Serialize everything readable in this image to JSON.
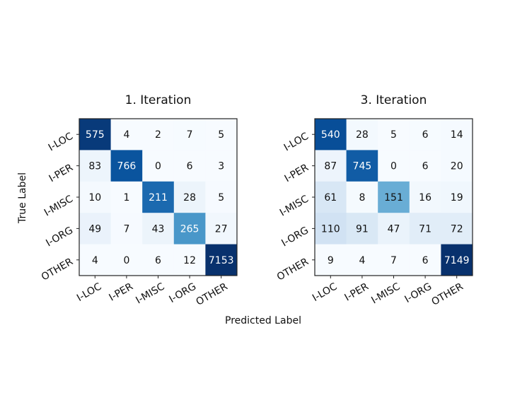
{
  "figure": {
    "xlabel": "Predicted Label",
    "ylabel": "True Label"
  },
  "chart_data": [
    {
      "type": "heatmap",
      "title": "1. Iteration",
      "x_categories": [
        "I-LOC",
        "I-PER",
        "I-MISC",
        "I-ORG",
        "OTHER"
      ],
      "y_categories": [
        "I-LOC",
        "I-PER",
        "I-MISC",
        "I-ORG",
        "OTHER"
      ],
      "xlabel": "Predicted Label",
      "ylabel": "True Label",
      "colormap": "Blues",
      "values": [
        [
          575,
          4,
          2,
          7,
          5
        ],
        [
          83,
          766,
          0,
          6,
          3
        ],
        [
          10,
          1,
          211,
          28,
          5
        ],
        [
          49,
          7,
          43,
          265,
          27
        ],
        [
          4,
          0,
          6,
          12,
          7153
        ]
      ]
    },
    {
      "type": "heatmap",
      "title": "3. Iteration",
      "x_categories": [
        "I-LOC",
        "I-PER",
        "I-MISC",
        "I-ORG",
        "OTHER"
      ],
      "y_categories": [
        "I-LOC",
        "I-PER",
        "I-MISC",
        "I-ORG",
        "OTHER"
      ],
      "xlabel": "Predicted Label",
      "ylabel": "True Label",
      "colormap": "Blues",
      "values": [
        [
          540,
          28,
          5,
          6,
          14
        ],
        [
          87,
          745,
          0,
          6,
          20
        ],
        [
          61,
          8,
          151,
          16,
          19
        ],
        [
          110,
          91,
          47,
          71,
          72
        ],
        [
          9,
          4,
          7,
          6,
          7149
        ]
      ]
    }
  ]
}
